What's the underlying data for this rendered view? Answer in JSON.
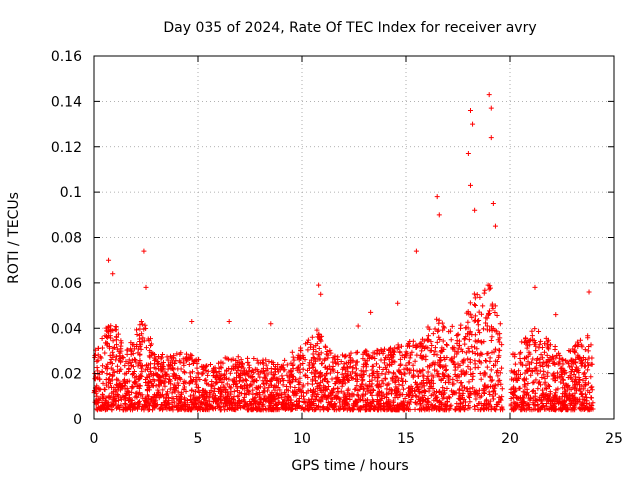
{
  "chart_data": {
    "type": "scatter",
    "title": "Day 035 of 2024, Rate Of TEC Index for receiver avry",
    "xlabel": "GPS time / hours",
    "ylabel": "ROTI / TECUs",
    "xlim": [
      0,
      25
    ],
    "ylim": [
      0,
      0.16
    ],
    "x_ticks": [
      0,
      5,
      10,
      15,
      20,
      25
    ],
    "x_tick_labels": [
      "0",
      "5",
      "10",
      "15",
      "20",
      "25"
    ],
    "y_ticks": [
      0,
      0.02,
      0.04,
      0.06,
      0.08,
      0.1,
      0.12,
      0.14,
      0.16
    ],
    "y_tick_labels": [
      "0",
      "0.02",
      "0.04",
      "0.06",
      "0.08",
      "0.1",
      "0.12",
      "0.14",
      "0.16"
    ],
    "grid": true,
    "marker": "+",
    "marker_color": "#ff0000",
    "data_gap_hours": [
      19.65,
      20.05
    ],
    "series": [
      {
        "name": "ROTI",
        "description_points": "dense ROTI samples; notable peaks listed",
        "peaks": [
          {
            "x": 0.7,
            "y": 0.07
          },
          {
            "x": 0.9,
            "y": 0.064
          },
          {
            "x": 2.4,
            "y": 0.074
          },
          {
            "x": 2.5,
            "y": 0.058
          },
          {
            "x": 4.7,
            "y": 0.043
          },
          {
            "x": 6.5,
            "y": 0.043
          },
          {
            "x": 8.5,
            "y": 0.042
          },
          {
            "x": 10.8,
            "y": 0.059
          },
          {
            "x": 10.9,
            "y": 0.055
          },
          {
            "x": 12.7,
            "y": 0.041
          },
          {
            "x": 13.3,
            "y": 0.047
          },
          {
            "x": 14.6,
            "y": 0.051
          },
          {
            "x": 15.5,
            "y": 0.074
          },
          {
            "x": 16.5,
            "y": 0.098
          },
          {
            "x": 16.6,
            "y": 0.09
          },
          {
            "x": 18.0,
            "y": 0.117
          },
          {
            "x": 18.1,
            "y": 0.136
          },
          {
            "x": 18.2,
            "y": 0.13
          },
          {
            "x": 18.1,
            "y": 0.103
          },
          {
            "x": 18.3,
            "y": 0.092
          },
          {
            "x": 19.0,
            "y": 0.143
          },
          {
            "x": 19.1,
            "y": 0.137
          },
          {
            "x": 19.1,
            "y": 0.124
          },
          {
            "x": 19.2,
            "y": 0.095
          },
          {
            "x": 19.3,
            "y": 0.085
          },
          {
            "x": 21.2,
            "y": 0.058
          },
          {
            "x": 22.2,
            "y": 0.046
          },
          {
            "x": 23.8,
            "y": 0.056
          }
        ]
      }
    ]
  }
}
